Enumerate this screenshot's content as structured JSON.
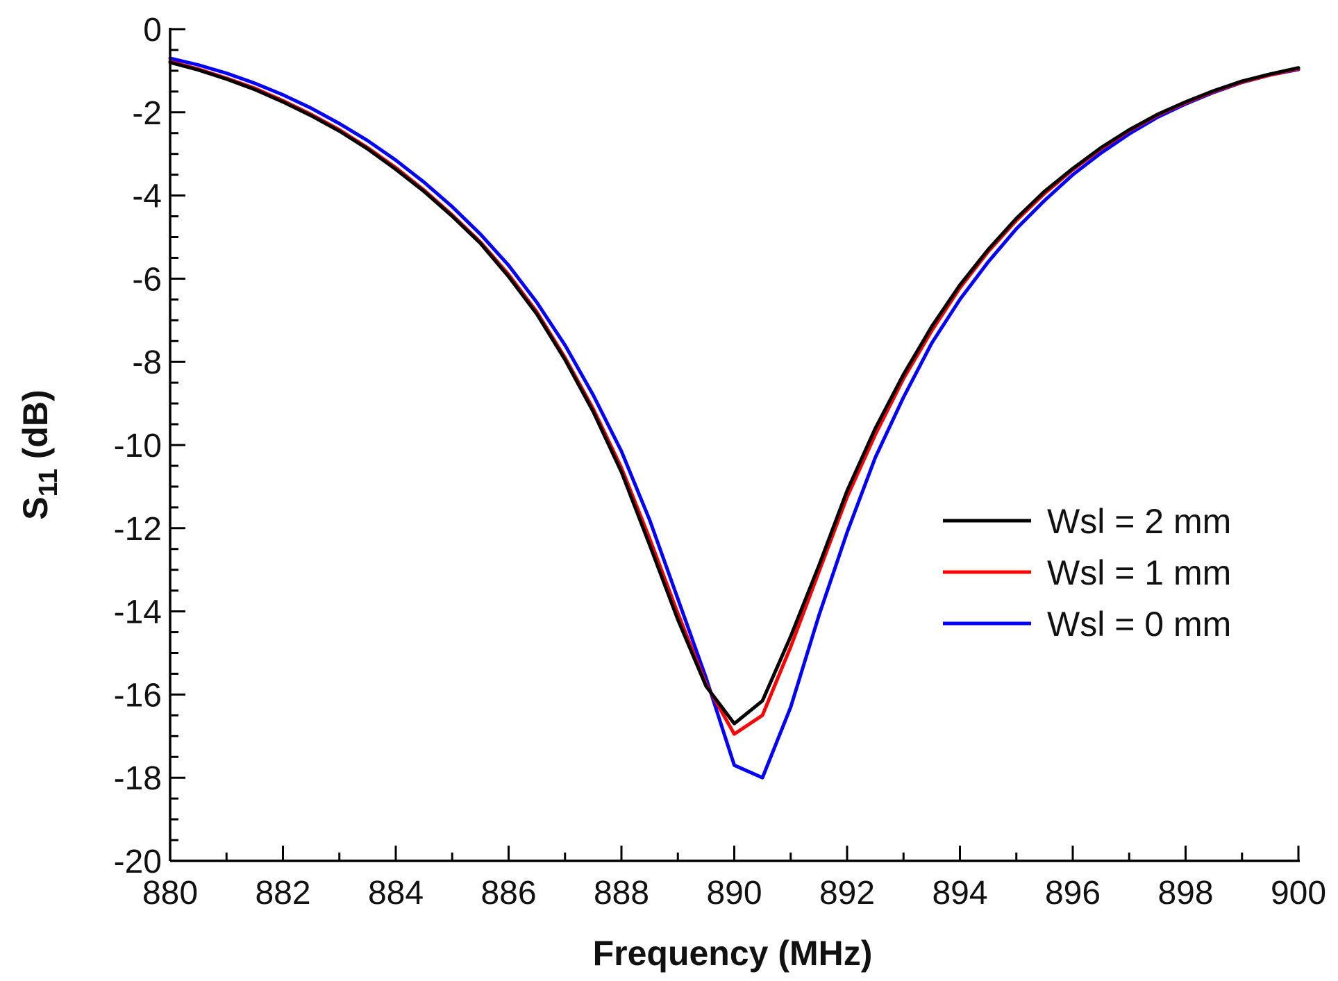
{
  "chart_data": {
    "type": "line",
    "title": "",
    "xlabel": "Frequency (MHz)",
    "ylabel_main": "S",
    "ylabel_sub": "11",
    "ylabel_unit": " (dB)",
    "xlim": [
      880,
      900
    ],
    "ylim": [
      -20,
      0
    ],
    "x_major_ticks": [
      880,
      882,
      884,
      886,
      888,
      890,
      892,
      894,
      896,
      898,
      900
    ],
    "x_minor_step": 1,
    "y_major_ticks": [
      0,
      -2,
      -4,
      -6,
      -8,
      -10,
      -12,
      -14,
      -16,
      -18,
      -20
    ],
    "y_minor_step": 0.5,
    "grid": false,
    "legend_position": "center-right",
    "x": [
      880,
      880.5,
      881,
      881.5,
      882,
      882.5,
      883,
      883.5,
      884,
      884.5,
      885,
      885.5,
      886,
      886.5,
      887,
      887.5,
      888,
      888.5,
      889,
      889.5,
      890,
      890.5,
      891,
      891.5,
      892,
      892.5,
      893,
      893.5,
      894,
      894.5,
      895,
      895.5,
      896,
      896.5,
      897,
      897.5,
      898,
      898.5,
      899,
      899.5,
      900
    ],
    "series": [
      {
        "name": "Wsl = 2 mm",
        "color": "#000000",
        "values": [
          -0.8,
          -0.98,
          -1.2,
          -1.45,
          -1.75,
          -2.08,
          -2.45,
          -2.88,
          -3.37,
          -3.9,
          -4.5,
          -5.15,
          -5.95,
          -6.85,
          -7.95,
          -9.2,
          -10.65,
          -12.4,
          -14.2,
          -15.8,
          -16.7,
          -16.15,
          -14.6,
          -12.9,
          -11.1,
          -9.6,
          -8.3,
          -7.15,
          -6.15,
          -5.3,
          -4.55,
          -3.9,
          -3.35,
          -2.85,
          -2.42,
          -2.05,
          -1.75,
          -1.48,
          -1.25,
          -1.08,
          -0.93
        ]
      },
      {
        "name": "Wsl = 1 mm",
        "color": "#ff0000",
        "values": [
          -0.78,
          -0.96,
          -1.18,
          -1.42,
          -1.72,
          -2.05,
          -2.42,
          -2.85,
          -3.33,
          -3.87,
          -4.47,
          -5.12,
          -5.9,
          -6.8,
          -7.9,
          -9.13,
          -10.55,
          -12.25,
          -14.05,
          -15.75,
          -16.95,
          -16.5,
          -14.85,
          -13.05,
          -11.25,
          -9.75,
          -8.4,
          -7.25,
          -6.22,
          -5.35,
          -4.6,
          -3.95,
          -3.38,
          -2.88,
          -2.44,
          -2.07,
          -1.77,
          -1.5,
          -1.27,
          -1.1,
          -0.95
        ]
      },
      {
        "name": "Wsl = 0 mm",
        "color": "#0000ff",
        "values": [
          -0.7,
          -0.86,
          -1.06,
          -1.3,
          -1.58,
          -1.9,
          -2.27,
          -2.68,
          -3.15,
          -3.68,
          -4.27,
          -4.93,
          -5.68,
          -6.57,
          -7.6,
          -8.8,
          -10.15,
          -11.8,
          -13.7,
          -15.6,
          -17.7,
          -18.0,
          -16.3,
          -14.1,
          -12.1,
          -10.3,
          -8.85,
          -7.55,
          -6.5,
          -5.6,
          -4.8,
          -4.12,
          -3.5,
          -2.98,
          -2.52,
          -2.12,
          -1.8,
          -1.52,
          -1.28,
          -1.1,
          -0.97
        ]
      }
    ]
  }
}
